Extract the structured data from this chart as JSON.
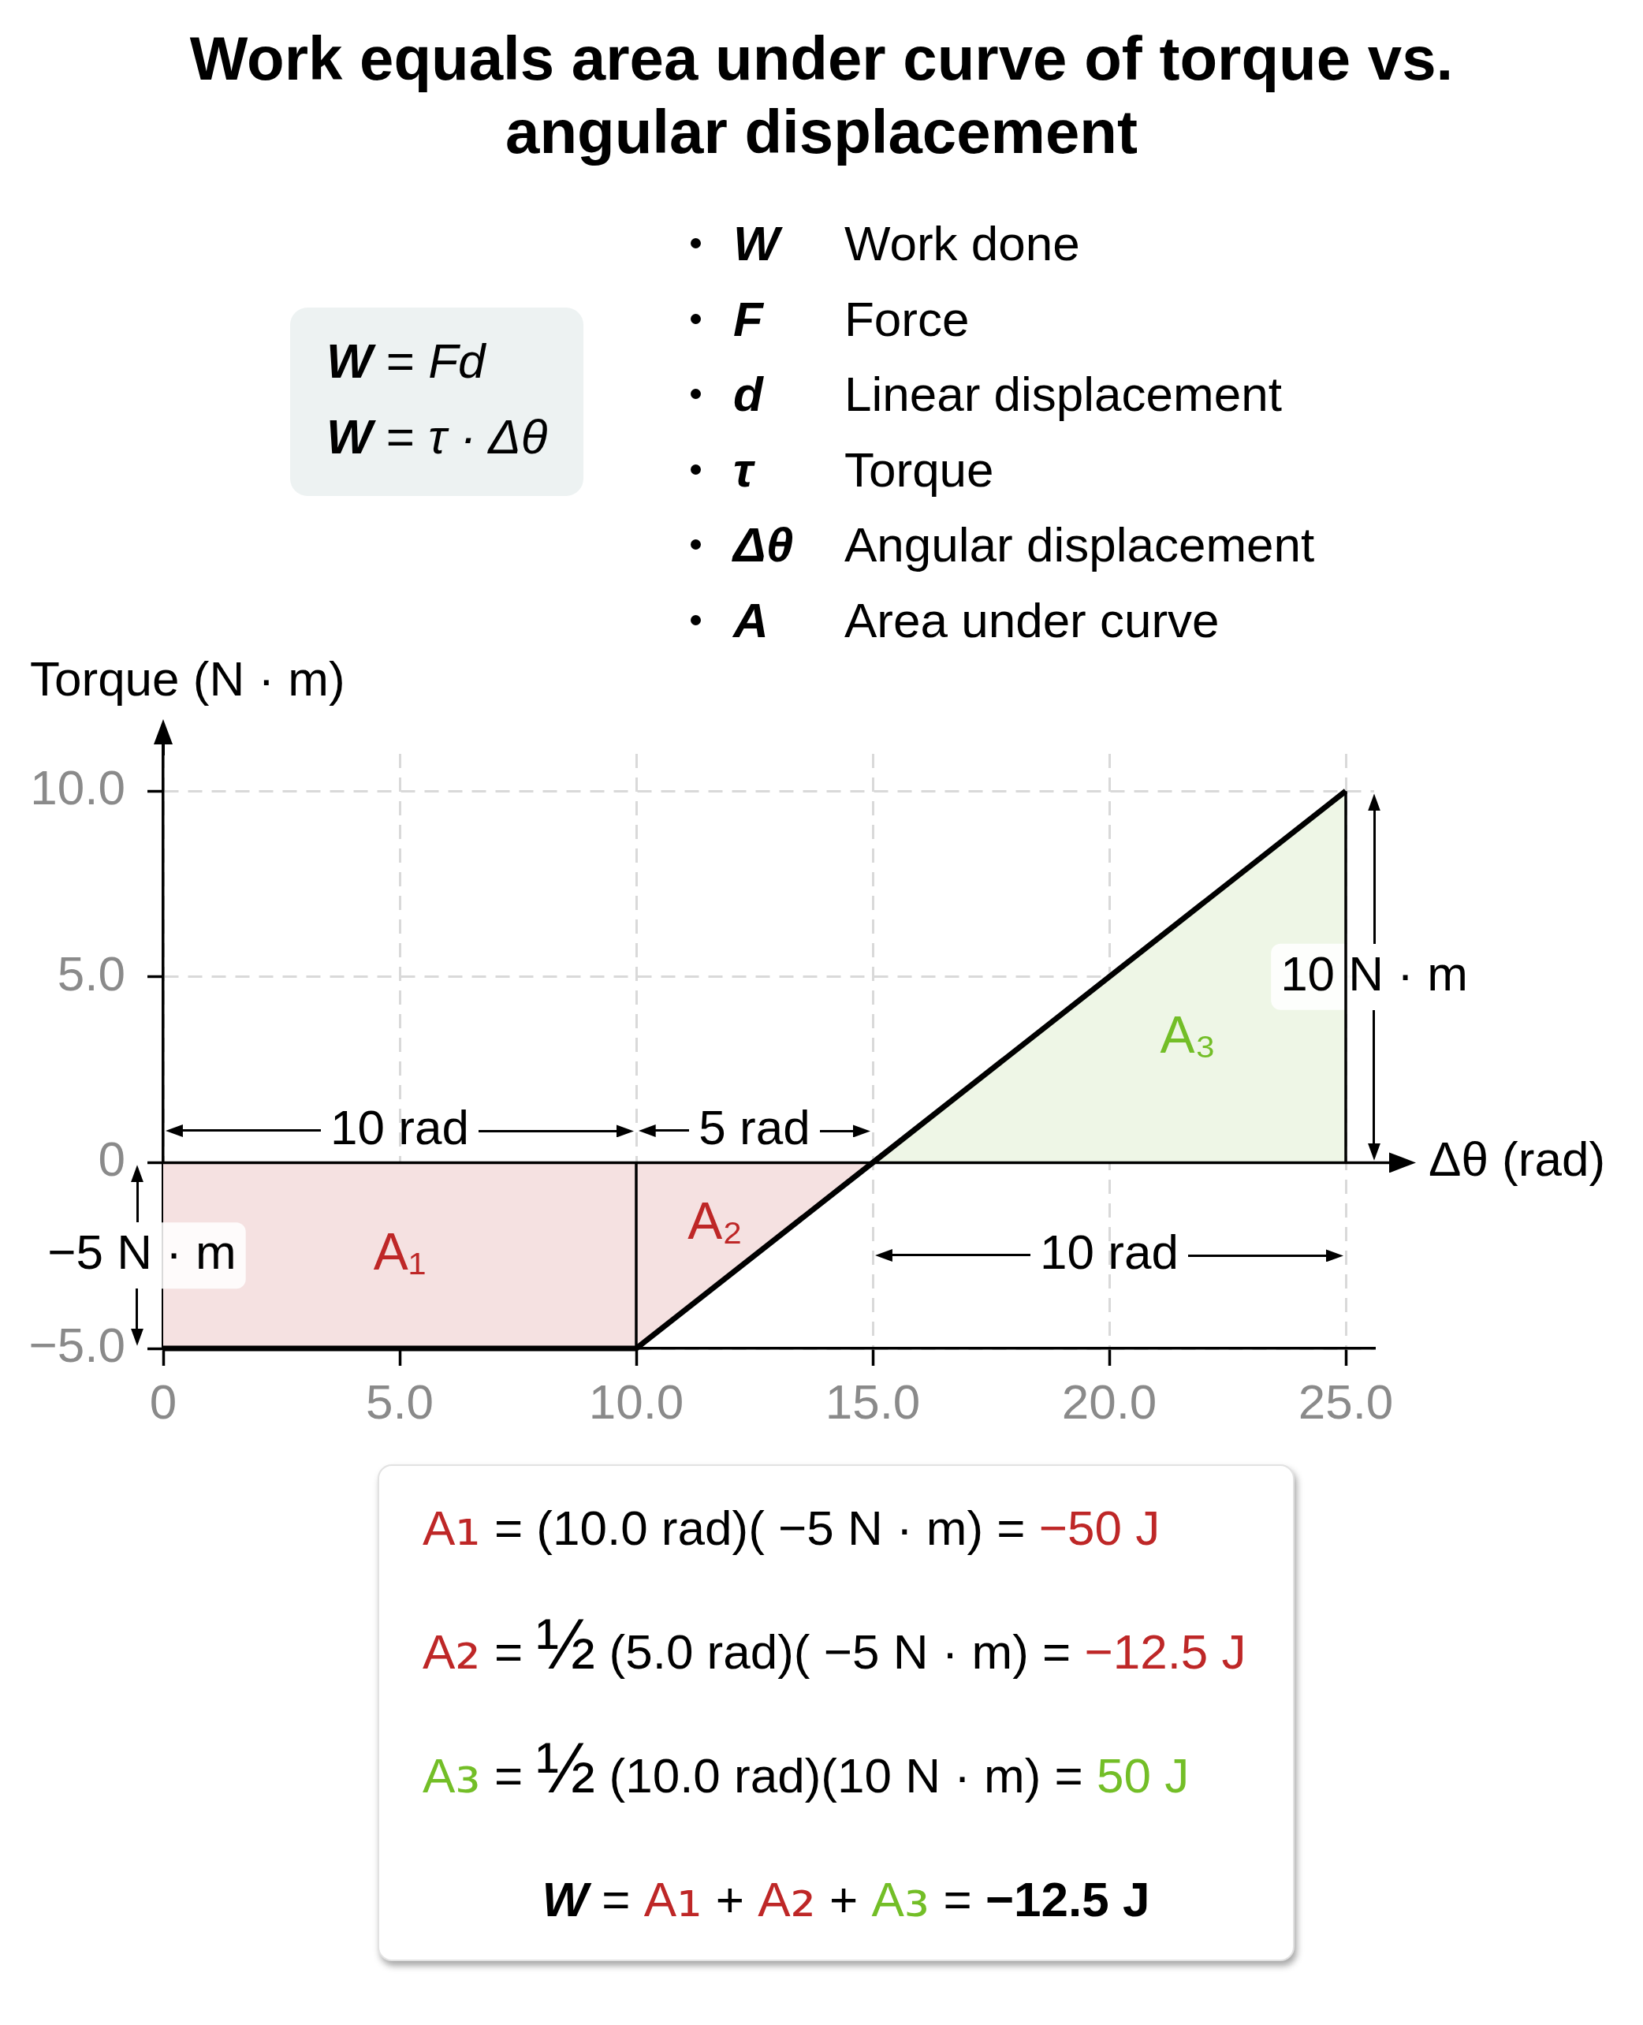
{
  "chart_data": [
    {
      "type": "line",
      "title": "Work equals area under curve of torque vs. angular displacement",
      "xlabel": "Δθ (rad)",
      "ylabel": "Torque (N · m)",
      "series": [
        {
          "type": "area",
          "color": "#f5e1e1",
          "x": [
            0,
            10,
            15
          ],
          "values": [
            -5,
            -5,
            0
          ]
        },
        {
          "type": "area",
          "color": "#eef6e6",
          "x": [
            15,
            25
          ],
          "values": [
            0,
            10
          ]
        },
        {
          "color": "#000000",
          "x": [
            10,
            10
          ],
          "values": [
            -5,
            0
          ]
        },
        {
          "color": "#000000",
          "x": [
            25,
            25
          ],
          "values": [
            0,
            10
          ]
        },
        {
          "color": "#000000",
          "x": [
            0,
            10,
            15,
            25
          ],
          "values": [
            -5,
            -5,
            0,
            10
          ]
        }
      ],
      "xlim": [
        0,
        25.6
      ],
      "ylim": [
        -5,
        11
      ],
      "xticks": [
        0,
        {
          "value": 5,
          "label": "5.0"
        },
        {
          "value": 10,
          "label": "10.0"
        },
        {
          "value": 15,
          "label": "15.0"
        },
        {
          "value": 20,
          "label": "20.0"
        },
        {
          "value": 25,
          "label": "25.0"
        }
      ],
      "yticks": [
        {
          "value": -5,
          "label": "−5.0"
        },
        0,
        {
          "value": 5,
          "label": "5.0"
        },
        {
          "value": 10,
          "label": "10.0"
        }
      ],
      "grid": true,
      "ref_lines": [
        {
          "axis": "y",
          "value": 0,
          "color": "#000000"
        }
      ],
      "annotations": [
        "A₁",
        "A₂",
        "A₃",
        "10 rad",
        "5 rad",
        "10 rad",
        "−5 N · m",
        "10 N · m"
      ]
    },
    {
      "type": "other",
      "annotations": [
        "W = Fd",
        "W = τ · Δθ"
      ]
    },
    {
      "type": "other",
      "annotations": [
        "W",
        "Work done",
        "F",
        "Force",
        "d",
        "Linear displacement",
        "τ",
        "Torque",
        "Δθ",
        "Angular displacement",
        "A",
        "Area under curve"
      ]
    },
    {
      "type": "other",
      "annotations": [
        "A₁ = (10.0 rad)( −5 N · m) = −50 J",
        "A₂ = ½ (5.0 rad)( −5 N · m) = −12.5 J",
        "A₃ = ½ (10.0 rad)(10 N · m) = 50 J",
        "W = A₁ + A₂ + A₃ = −12.5 J"
      ]
    }
  ]
}
